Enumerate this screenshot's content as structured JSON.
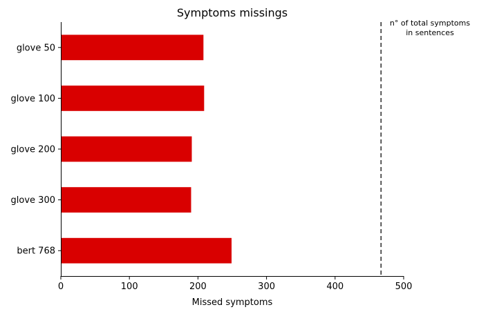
{
  "chart_data": {
    "type": "bar",
    "orientation": "horizontal",
    "title": "Symptoms missings",
    "xlabel": "Missed symptoms",
    "ylabel": "",
    "categories": [
      "glove 50",
      "glove 100",
      "glove 200",
      "glove 300",
      "bert 768"
    ],
    "values": [
      208,
      209,
      191,
      190,
      249
    ],
    "xlim": [
      0,
      500
    ],
    "xticks": [
      0,
      100,
      200,
      300,
      400,
      500
    ],
    "bar_color": "#d90000",
    "reference_line": {
      "value": 467,
      "style": "dashed",
      "label_lines": [
        "n° of total symptoms",
        "in sentences"
      ]
    },
    "grid": false,
    "legend": "none"
  }
}
